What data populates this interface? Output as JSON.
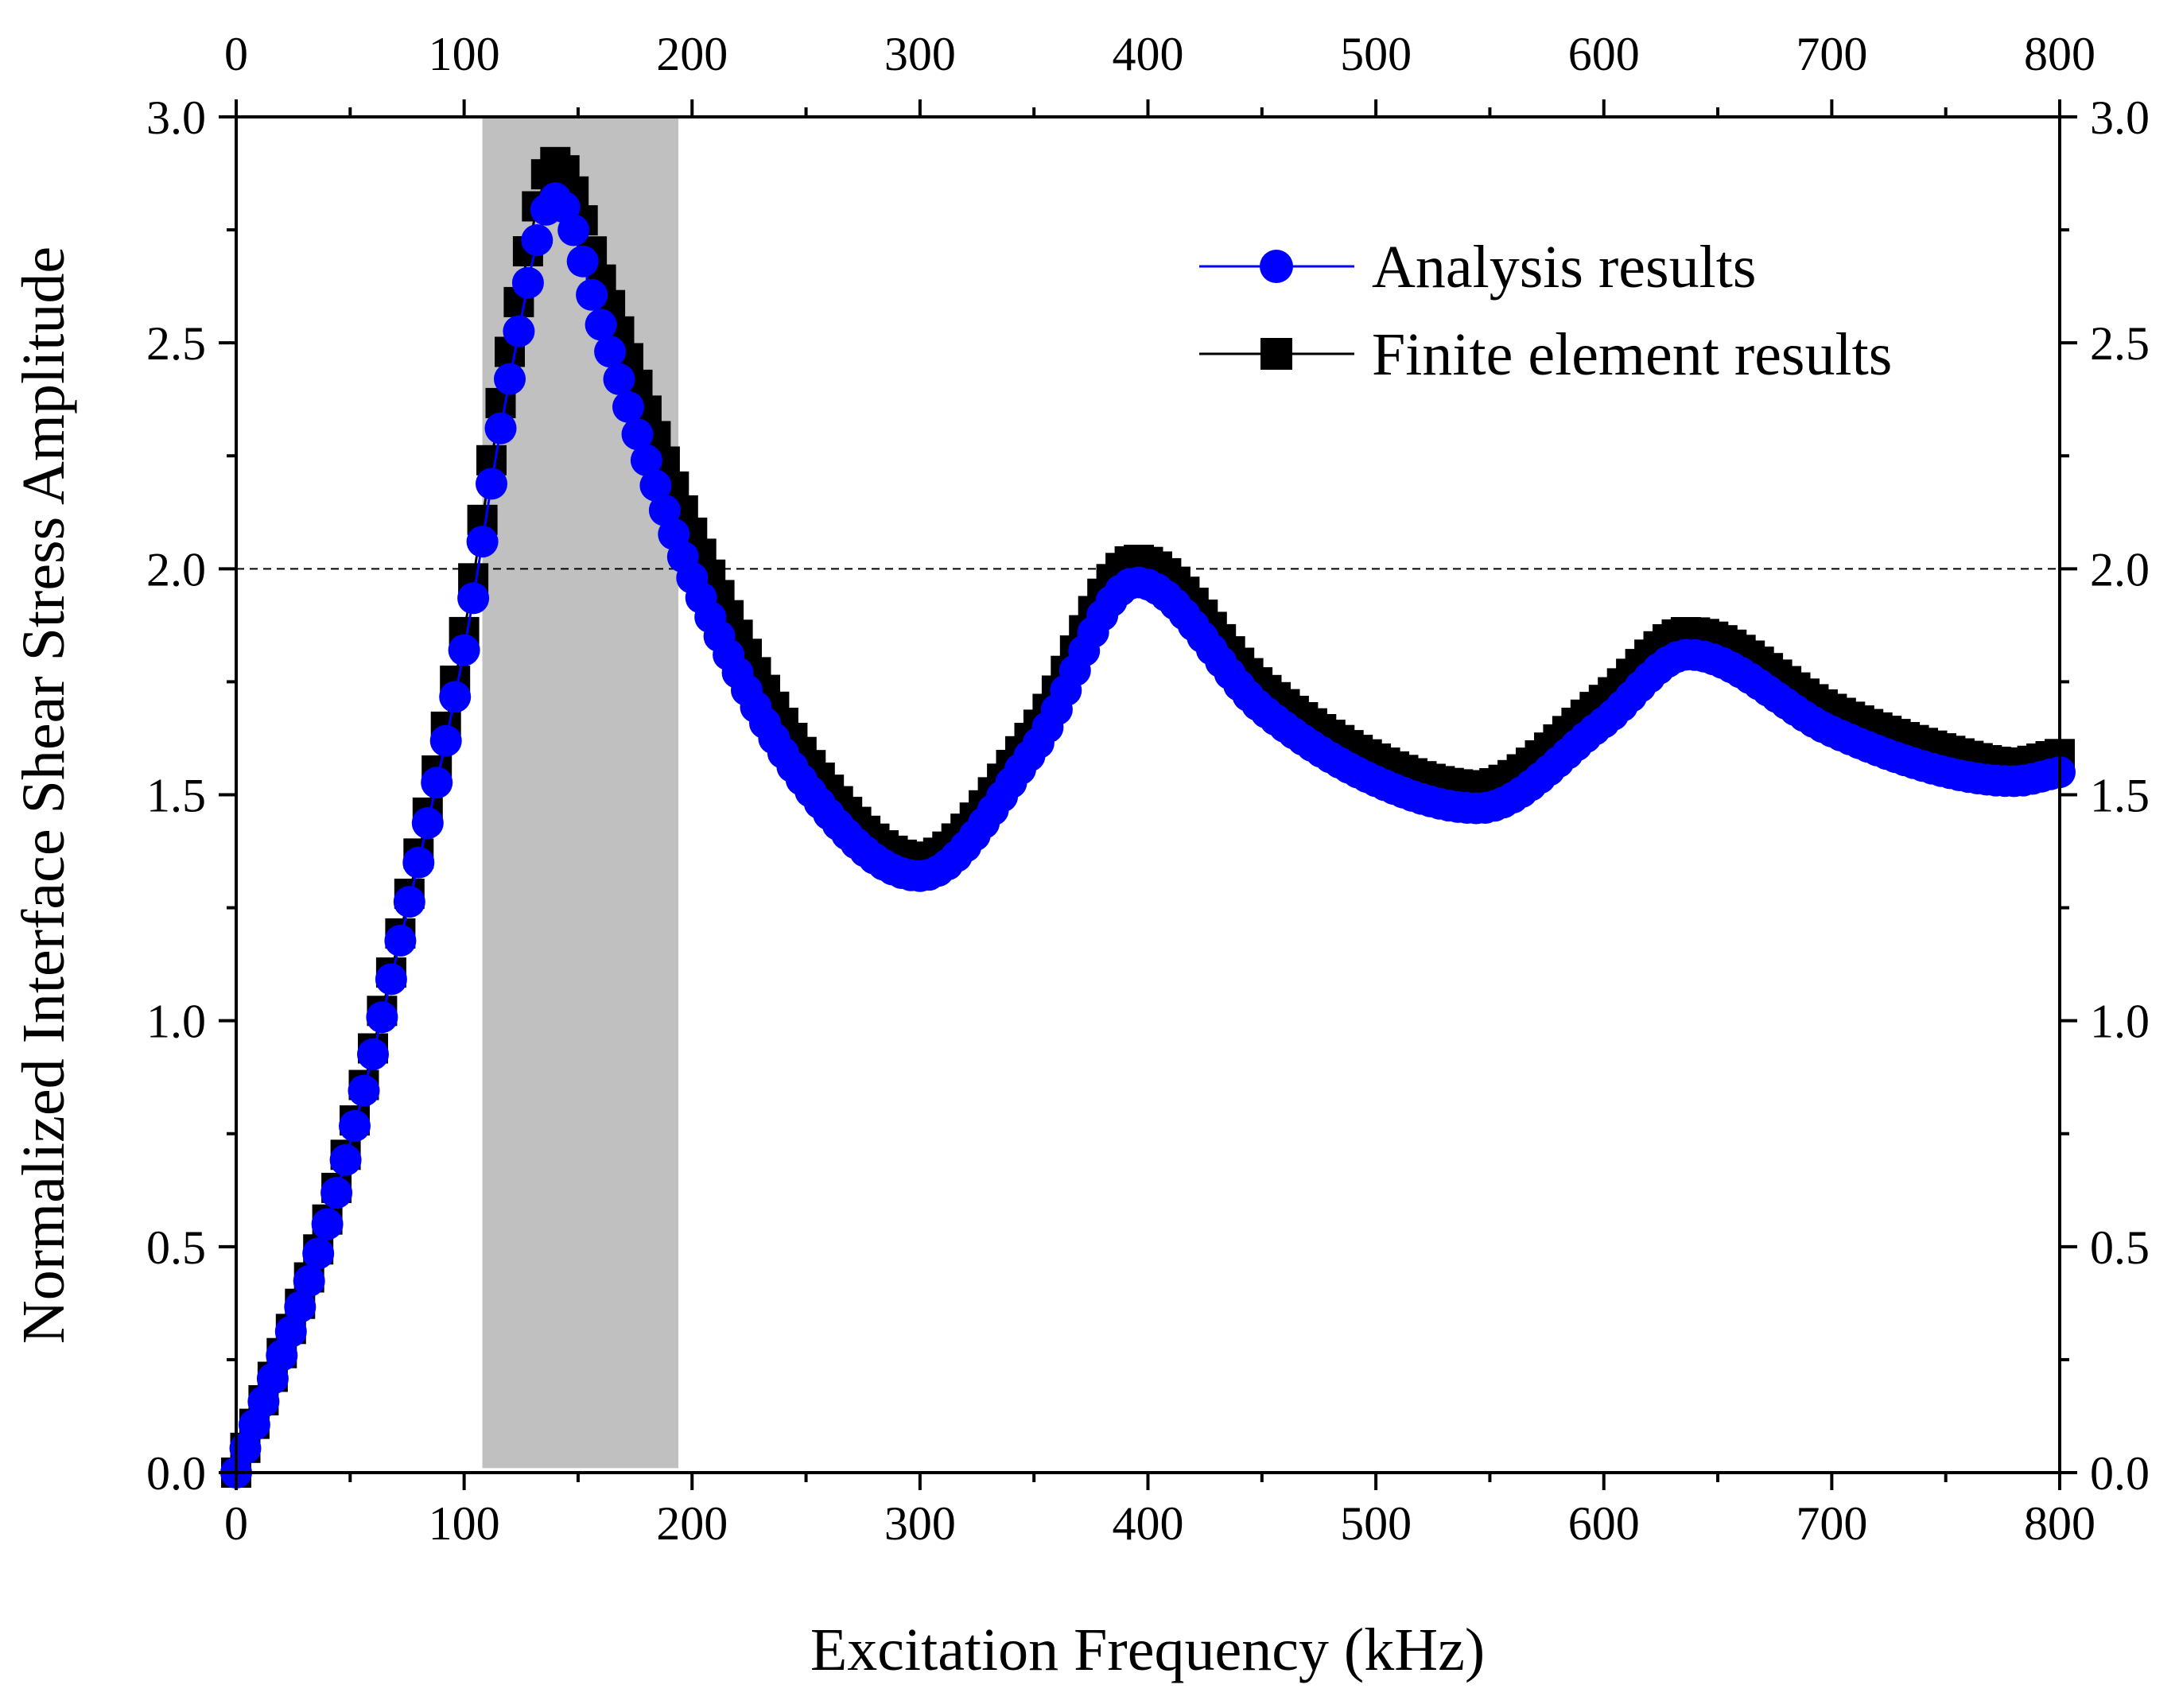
{
  "chart_data": {
    "type": "scatter",
    "title": "",
    "xlabel": "Excitation Frequency (kHz)",
    "ylabel": "Normalized Interface Shear Stress Amplitude",
    "xlim": [
      0,
      800
    ],
    "ylim": [
      0,
      3.0
    ],
    "x_ticks": [
      "0",
      "100",
      "200",
      "300",
      "400",
      "500",
      "600",
      "700",
      "800"
    ],
    "y_ticks": [
      "0.0",
      "0.5",
      "1.0",
      "1.5",
      "2.0",
      "2.5",
      "3.0"
    ],
    "x_tick_values": [
      0,
      100,
      200,
      300,
      400,
      500,
      600,
      700,
      800
    ],
    "y_tick_values": [
      0,
      0.5,
      1.0,
      1.5,
      2.0,
      2.5,
      3.0
    ],
    "reference_line": {
      "y": 2.0,
      "style": "dashed"
    },
    "highlight_band": {
      "x_start": 108,
      "x_end": 194,
      "y_start": 0.01,
      "y_end": 3.0
    },
    "legend_position": "top-right",
    "series": [
      {
        "name": "Analysis results",
        "marker": "circle",
        "color": "#0000ff",
        "x": [
          0,
          40,
          80,
          100,
          120,
          140,
          160,
          180,
          200,
          250,
          300,
          350,
          395,
          450,
          500,
          545,
          600,
          637,
          700,
          750,
          780,
          800
        ],
        "y": [
          0.0,
          0.55,
          1.35,
          1.82,
          2.42,
          2.82,
          2.54,
          2.24,
          1.98,
          1.52,
          1.32,
          1.6,
          1.97,
          1.69,
          1.53,
          1.47,
          1.66,
          1.81,
          1.64,
          1.55,
          1.53,
          1.55
        ]
      },
      {
        "name": "Finite element results",
        "marker": "square",
        "color": "#000000",
        "x": [
          0,
          40,
          80,
          100,
          120,
          140,
          160,
          180,
          200,
          250,
          300,
          350,
          395,
          450,
          500,
          545,
          600,
          637,
          700,
          750,
          780,
          800
        ],
        "y": [
          0.0,
          0.56,
          1.37,
          1.86,
          2.48,
          2.9,
          2.64,
          2.35,
          2.08,
          1.58,
          1.36,
          1.64,
          2.02,
          1.74,
          1.58,
          1.52,
          1.71,
          1.86,
          1.69,
          1.6,
          1.57,
          1.59
        ]
      }
    ]
  }
}
